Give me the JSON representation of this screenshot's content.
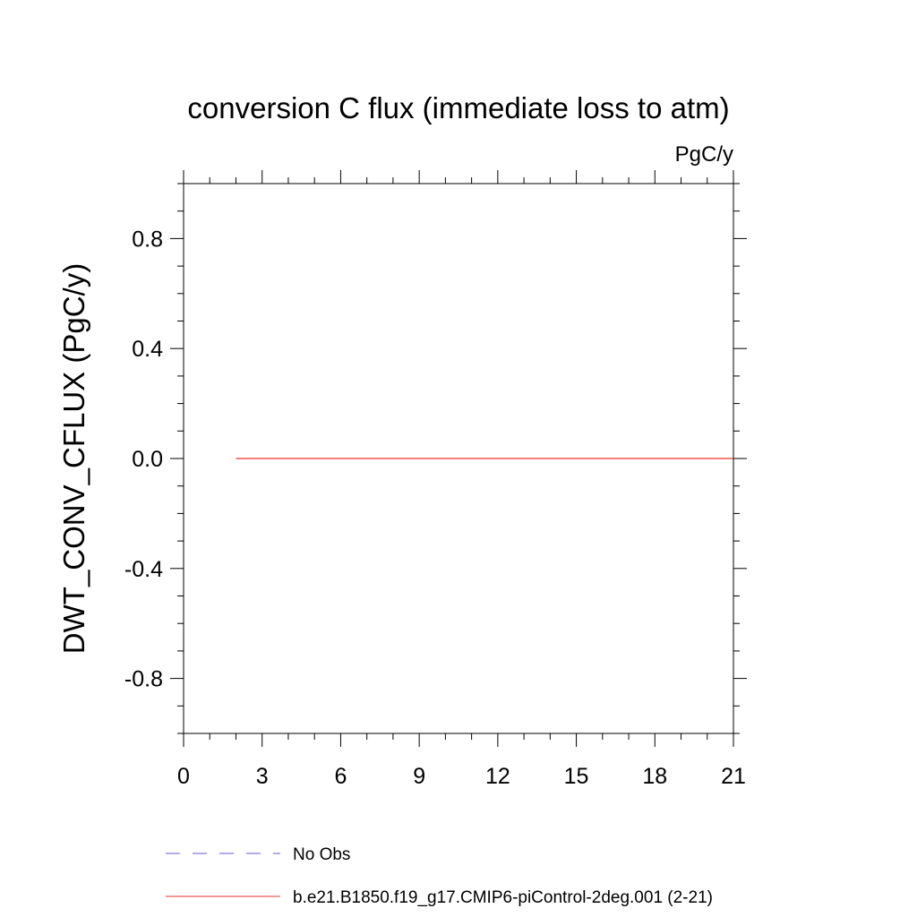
{
  "chart_data": {
    "type": "line",
    "title": "conversion C flux (immediate loss to atm)",
    "units_label": "PgC/y",
    "ylabel": "DWT_CONV_CFLUX  (PgC/y)",
    "xlabel": "",
    "xlim": [
      0,
      21
    ],
    "ylim": [
      -1.0,
      1.0
    ],
    "x_ticks": [
      0,
      3,
      6,
      9,
      12,
      15,
      18,
      21
    ],
    "x_tick_labels": [
      "0",
      "3",
      "6",
      "9",
      "12",
      "15",
      "18",
      "21"
    ],
    "x_minor_step": 3,
    "y_ticks": [
      -0.8,
      -0.4,
      0.0,
      0.4,
      0.8
    ],
    "y_tick_labels": [
      "-0.8",
      "-0.4",
      "0.0",
      "0.4",
      "0.8"
    ],
    "y_minor_step": 0.1,
    "grid": false,
    "legend_position": "bottom",
    "series": [
      {
        "name": "b.e21.B1850.f19_g17.CMIP6-piControl-2deg.001 (2-21)",
        "color": "#e8302c",
        "style": "solid",
        "x": [
          2,
          3,
          4,
          5,
          6,
          7,
          8,
          9,
          10,
          11,
          12,
          13,
          14,
          15,
          16,
          17,
          18,
          19,
          20,
          21
        ],
        "y": [
          0,
          0,
          0,
          0,
          0,
          0,
          0,
          0,
          0,
          0,
          0,
          0,
          0,
          0,
          0,
          0,
          0,
          0,
          0,
          0
        ]
      }
    ],
    "legend": [
      {
        "label": "No Obs",
        "color": "#6a5acd",
        "style": "dashed"
      },
      {
        "label": "b.e21.B1850.f19_g17.CMIP6-piControl-2deg.001 (2-21)",
        "color": "#e8302c",
        "style": "solid"
      }
    ]
  }
}
